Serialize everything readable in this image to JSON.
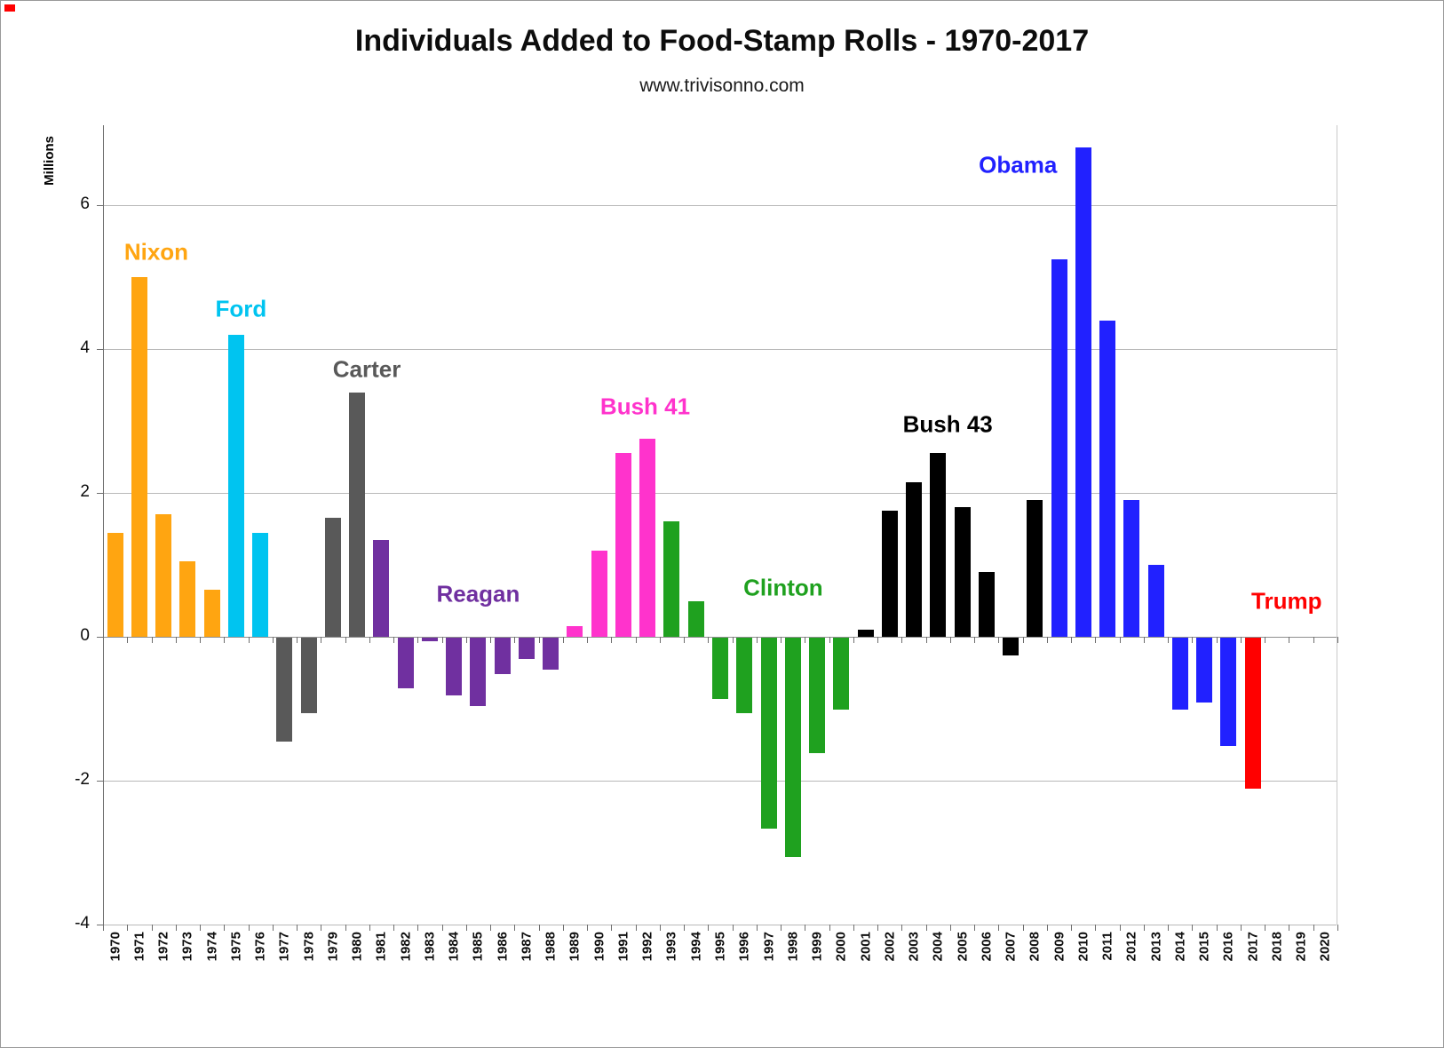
{
  "chart_data": {
    "type": "bar",
    "title": "Individuals Added to Food-Stamp Rolls - 1970-2017",
    "subtitle": "www.trivisonno.com",
    "xlabel": "",
    "ylabel": "Millions",
    "ylim": [
      -4.1,
      7.1
    ],
    "yticks": [
      6,
      4,
      2,
      0,
      -2,
      -4
    ],
    "grid": true,
    "legend_position": "none",
    "years": [
      "1970",
      "1971",
      "1972",
      "1973",
      "1974",
      "1975",
      "1976",
      "1977",
      "1978",
      "1979",
      "1980",
      "1981",
      "1982",
      "1983",
      "1984",
      "1985",
      "1986",
      "1987",
      "1988",
      "1989",
      "1990",
      "1991",
      "1992",
      "1993",
      "1994",
      "1995",
      "1996",
      "1997",
      "1998",
      "1999",
      "2000",
      "2001",
      "2002",
      "2003",
      "2004",
      "2005",
      "2006",
      "2007",
      "2008",
      "2009",
      "2010",
      "2011",
      "2012",
      "2013",
      "2014",
      "2015",
      "2016",
      "2017",
      "2018",
      "2019",
      "2020"
    ],
    "values": [
      1.45,
      5.0,
      1.7,
      1.05,
      0.65,
      4.2,
      1.45,
      -1.45,
      -1.05,
      1.65,
      3.4,
      1.35,
      -0.7,
      -0.05,
      -0.8,
      -0.95,
      -0.5,
      -0.3,
      -0.45,
      0.15,
      1.2,
      2.55,
      2.75,
      1.6,
      0.5,
      -0.85,
      -1.05,
      -2.65,
      -3.05,
      -1.6,
      -1.0,
      0.1,
      1.75,
      2.15,
      2.55,
      1.8,
      0.9,
      -0.25,
      1.9,
      5.25,
      6.8,
      4.4,
      1.9,
      1.0,
      -1.0,
      -0.9,
      -1.5,
      -2.1,
      null,
      null,
      null
    ],
    "presidents_by_year": [
      "nixon",
      "nixon",
      "nixon",
      "nixon",
      "nixon",
      "ford",
      "ford",
      "carter",
      "carter",
      "carter",
      "carter",
      "reagan",
      "reagan",
      "reagan",
      "reagan",
      "reagan",
      "reagan",
      "reagan",
      "reagan",
      "bush41",
      "bush41",
      "bush41",
      "bush41",
      "clinton",
      "clinton",
      "clinton",
      "clinton",
      "clinton",
      "clinton",
      "clinton",
      "clinton",
      "bush43",
      "bush43",
      "bush43",
      "bush43",
      "bush43",
      "bush43",
      "bush43",
      "bush43",
      "obama",
      "obama",
      "obama",
      "obama",
      "obama",
      "obama",
      "obama",
      "obama",
      "trump",
      "none",
      "none",
      "none"
    ],
    "president_colors": {
      "nixon": "#FFA511",
      "ford": "#00C4F0",
      "carter": "#595959",
      "reagan": "#7030A0",
      "bush41": "#FF33CC",
      "clinton": "#1FA11F",
      "bush43": "#000000",
      "obama": "#2121FF",
      "trump": "#FF0000",
      "none": "#FFFFFF"
    },
    "annotations": [
      {
        "text": "Nixon",
        "color": "#FFA511",
        "year": 1971.7,
        "value": 5.35
      },
      {
        "text": "Ford",
        "color": "#00C4F0",
        "year": 1975.2,
        "value": 4.56
      },
      {
        "text": "Carter",
        "color": "#595959",
        "year": 1980.4,
        "value": 3.72
      },
      {
        "text": "Reagan",
        "color": "#7030A0",
        "year": 1985.0,
        "value": 0.59
      },
      {
        "text": "Bush 41",
        "color": "#FF33CC",
        "year": 1991.9,
        "value": 3.2
      },
      {
        "text": "Clinton",
        "color": "#1FA11F",
        "year": 1997.6,
        "value": 0.68
      },
      {
        "text": "Bush 43",
        "color": "#000000",
        "year": 2004.4,
        "value": 2.95
      },
      {
        "text": "Obama",
        "color": "#2121FF",
        "year": 2007.3,
        "value": 6.56
      },
      {
        "text": "Trump",
        "color": "#FF0000",
        "year": 2018.4,
        "value": 0.49
      }
    ]
  }
}
